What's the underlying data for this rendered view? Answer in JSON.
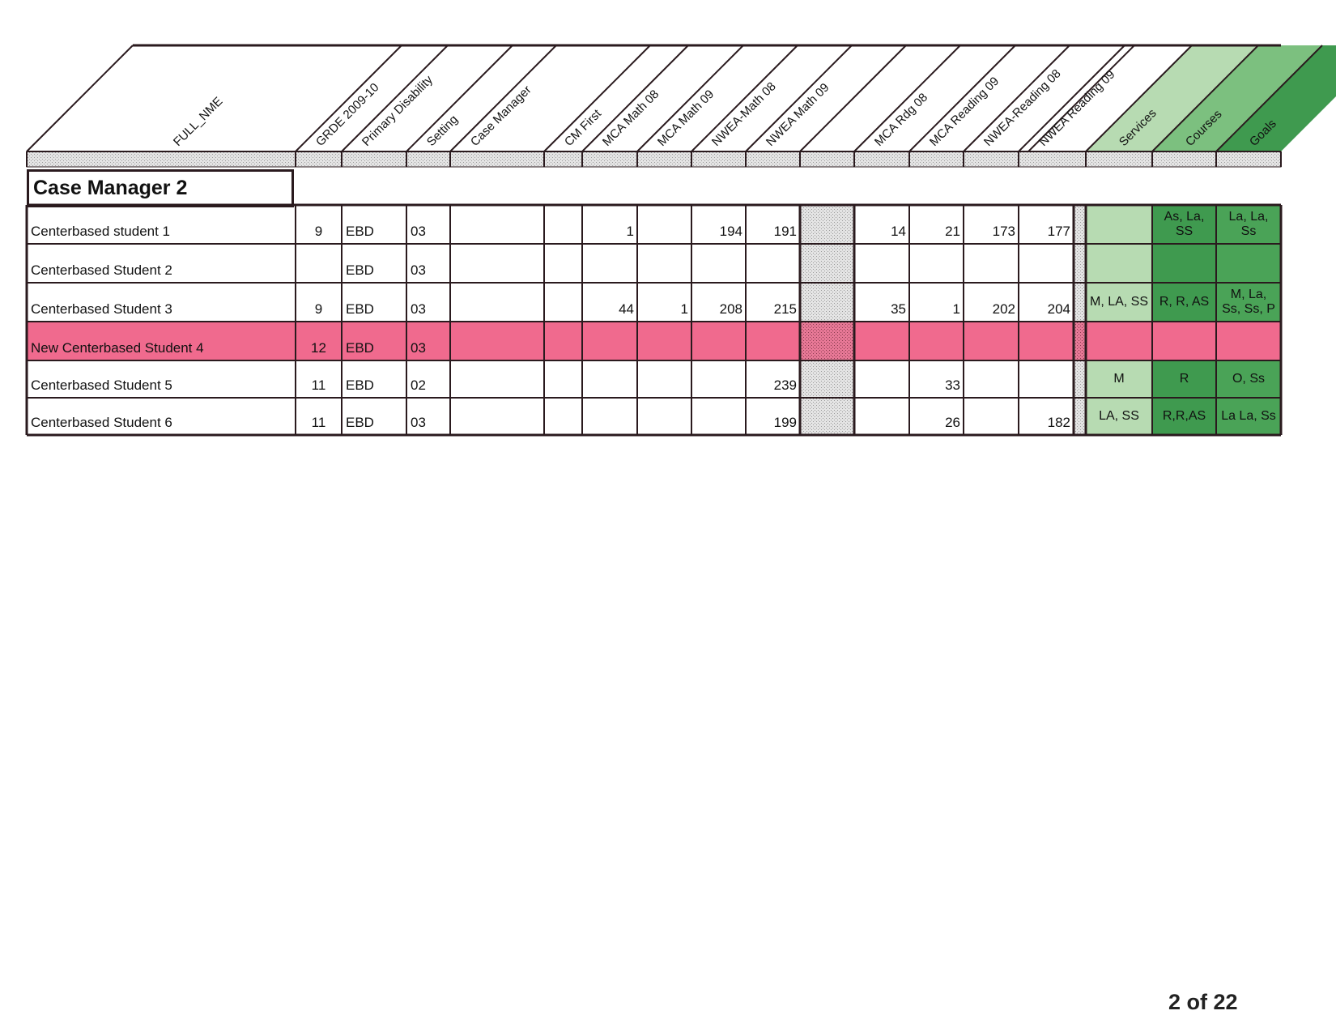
{
  "columns": [
    {
      "key": "name",
      "label": "FULL_NME"
    },
    {
      "key": "grade",
      "label": "GRDE 2009-10"
    },
    {
      "key": "disability",
      "label": "Primary Disability"
    },
    {
      "key": "setting",
      "label": "Setting"
    },
    {
      "key": "case_manager",
      "label": "Case Manager"
    },
    {
      "key": "cm_first",
      "label": "CM First"
    },
    {
      "key": "mca_math_08",
      "label": "MCA Math 08"
    },
    {
      "key": "mca_math_09",
      "label": "MCA Math 09"
    },
    {
      "key": "nwea_math_08",
      "label": "NWEA-Math 08"
    },
    {
      "key": "nwea_math_09",
      "label": "NWEA Math 09"
    },
    {
      "key": "blank",
      "label": ""
    },
    {
      "key": "mca_rdg_08",
      "label": "MCA Rdg 08"
    },
    {
      "key": "mca_reading_09",
      "label": "MCA Reading 09"
    },
    {
      "key": "nwea_reading_08",
      "label": "NWEA-Reading 08"
    },
    {
      "key": "nwea_reading_09",
      "label": "NWEA Reading 09"
    },
    {
      "key": "services",
      "label": "Services"
    },
    {
      "key": "courses",
      "label": "Courses"
    },
    {
      "key": "goals",
      "label": "Goals"
    }
  ],
  "section_title": "Case Manager 2",
  "rows": [
    {
      "name": "Centerbased student 1",
      "grade": "9",
      "disability": "EBD",
      "setting": "03",
      "case_manager": "",
      "cm_first": "",
      "mca_math_08": "1",
      "mca_math_09": "",
      "nwea_math_08": "194",
      "nwea_math_09": "191",
      "mca_rdg_08": "14",
      "mca_reading_09": "21",
      "nwea_reading_08": "173",
      "nwea_reading_09": "177",
      "services": "",
      "courses": "As, La, SS",
      "goals": "La, La, Ss",
      "highlight": false
    },
    {
      "name": "Centerbased Student 2",
      "grade": "",
      "disability": "EBD",
      "setting": "03",
      "case_manager": "",
      "cm_first": "",
      "mca_math_08": "",
      "mca_math_09": "",
      "nwea_math_08": "",
      "nwea_math_09": "",
      "mca_rdg_08": "",
      "mca_reading_09": "",
      "nwea_reading_08": "",
      "nwea_reading_09": "",
      "services": "",
      "courses": "",
      "goals": "",
      "highlight": false
    },
    {
      "name": "Centerbased Student 3",
      "grade": "9",
      "disability": "EBD",
      "setting": "03",
      "case_manager": "",
      "cm_first": "",
      "mca_math_08": "44",
      "mca_math_09": "1",
      "nwea_math_08": "208",
      "nwea_math_09": "215",
      "mca_rdg_08": "35",
      "mca_reading_09": "1",
      "nwea_reading_08": "202",
      "nwea_reading_09": "204",
      "services": "M, LA, SS",
      "courses": "R, R, AS",
      "goals": "M, La, Ss, Ss, P",
      "highlight": false
    },
    {
      "name": "New Centerbased Student 4",
      "grade": "12",
      "disability": "EBD",
      "setting": "03",
      "case_manager": "",
      "cm_first": "",
      "mca_math_08": "",
      "mca_math_09": "",
      "nwea_math_08": "",
      "nwea_math_09": "",
      "mca_rdg_08": "",
      "mca_reading_09": "",
      "nwea_reading_08": "",
      "nwea_reading_09": "",
      "services": "",
      "courses": "",
      "goals": "",
      "highlight": true
    },
    {
      "name": "Centerbased Student 5",
      "grade": "11",
      "disability": "EBD",
      "setting": "02",
      "case_manager": "",
      "cm_first": "",
      "mca_math_08": "",
      "mca_math_09": "",
      "nwea_math_08": "",
      "nwea_math_09": "239",
      "mca_rdg_08": "",
      "mca_reading_09": "33",
      "nwea_reading_08": "",
      "nwea_reading_09": "",
      "services": "M",
      "courses": "R",
      "goals": "O, Ss",
      "highlight": false
    },
    {
      "name": "Centerbased Student 6",
      "grade": "11",
      "disability": "EBD",
      "setting": "03",
      "case_manager": "",
      "cm_first": "",
      "mca_math_08": "",
      "mca_math_09": "",
      "nwea_math_08": "",
      "nwea_math_09": "199",
      "mca_rdg_08": "",
      "mca_reading_09": "26",
      "nwea_reading_08": "",
      "nwea_reading_09": "182",
      "services": "LA, SS",
      "courses": "R,R,AS",
      "goals": "La La, Ss",
      "highlight": false
    }
  ],
  "page_number": "2 of 22",
  "colors": {
    "highlight_row": "#f06a8e",
    "services_green": "#b7dbb2",
    "courses_green": "#3f9a4f",
    "goals_green": "#4aa357",
    "grid_line": "#2a1a1e"
  }
}
